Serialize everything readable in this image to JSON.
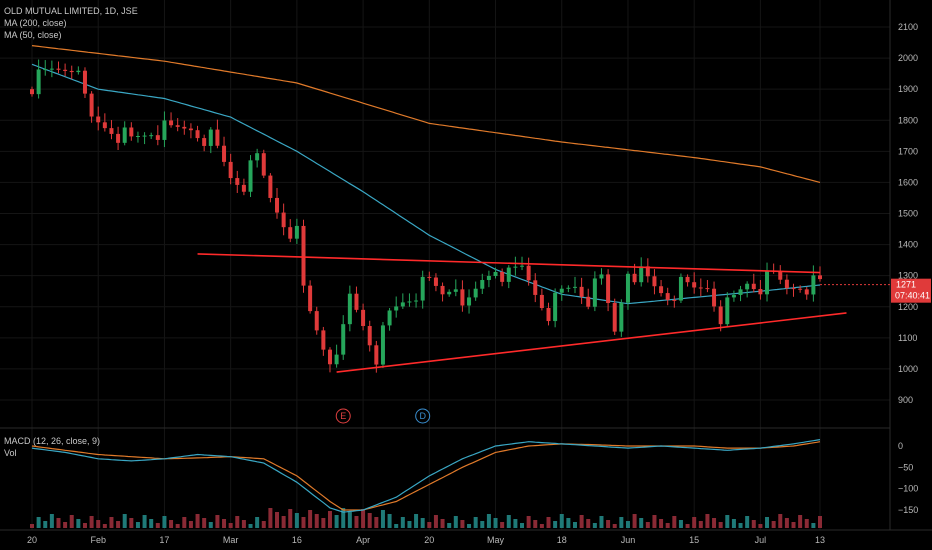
{
  "legend": {
    "title": "OLD MUTUAL LIMITED, 1D, JSE",
    "ma200": "MA (200, close)",
    "ma50": "MA (50, close)",
    "macd": "MACD (12, 26, close, 9)",
    "vol": "Vol"
  },
  "badges": {
    "last_price": "1271",
    "countdown": "07:40:41"
  },
  "events": [
    {
      "label": "E",
      "color": "#e04040",
      "day": 47
    },
    {
      "label": "D",
      "color": "#3a8fd0",
      "day": 59
    }
  ],
  "colors": {
    "up": "#26a65b",
    "down": "#e03a3a",
    "ma200": "#e07a2a",
    "ma50": "#3aa7c4",
    "trendline": "#ff2a2a",
    "macd_line": "#3aa7c4",
    "signal_line": "#e07a2a",
    "vol_up": "#1f7a78",
    "vol_down": "#8a2a35",
    "badge_bg": "#e03a3a",
    "grid": "#151515"
  },
  "chart_data": {
    "type": "candlestick",
    "title": "OLD MUTUAL LIMITED, 1D, JSE",
    "price_axis": {
      "ticks": [
        900,
        1000,
        1100,
        1200,
        1300,
        1400,
        1500,
        1600,
        1700,
        1800,
        1900,
        2000,
        2100
      ],
      "range": [
        850,
        2150
      ]
    },
    "macd_axis": {
      "ticks": [
        0,
        -50,
        -100,
        -150
      ],
      "range": [
        -180,
        30
      ]
    },
    "time_axis": {
      "labels": [
        "20",
        "Feb",
        "17",
        "Mar",
        "16",
        "Apr",
        "20",
        "May",
        "18",
        "Jun",
        "15",
        "Jul",
        "13"
      ],
      "days": [
        0,
        10,
        20,
        30,
        40,
        50,
        60,
        70,
        80,
        90,
        100,
        110,
        119
      ]
    },
    "candles_close_anchors": {
      "days": [
        0,
        3,
        6,
        9,
        12,
        15,
        18,
        21,
        24,
        27,
        30,
        32,
        34,
        36,
        38,
        40,
        41,
        42,
        44,
        46,
        48,
        50,
        52,
        54,
        56,
        58,
        60,
        62,
        64,
        66,
        68,
        70,
        72,
        74,
        76,
        78,
        80,
        82,
        84,
        86,
        88,
        90,
        92,
        94,
        96,
        98,
        100,
        102,
        104,
        106,
        108,
        110,
        112,
        114,
        116,
        118
      ],
      "closes": [
        1920,
        1960,
        1985,
        1800,
        1780,
        1730,
        1770,
        1760,
        1780,
        1740,
        1620,
        1600,
        1670,
        1550,
        1480,
        1430,
        1250,
        1180,
        1080,
        1010,
        1230,
        1150,
        1050,
        1170,
        1220,
        1250,
        1270,
        1240,
        1280,
        1200,
        1280,
        1330,
        1290,
        1320,
        1250,
        1190,
        1240,
        1270,
        1230,
        1280,
        1120,
        1330,
        1300,
        1260,
        1240,
        1260,
        1250,
        1270,
        1180,
        1220,
        1280,
        1270,
        1290,
        1260,
        1280,
        1271
      ]
    },
    "ma200_anchors": {
      "days": [
        0,
        20,
        40,
        60,
        80,
        100,
        110,
        119
      ],
      "values": [
        2040,
        1990,
        1920,
        1790,
        1730,
        1680,
        1650,
        1600
      ]
    },
    "ma50_anchors": {
      "days": [
        0,
        10,
        20,
        30,
        40,
        50,
        60,
        70,
        80,
        90,
        100,
        110,
        119
      ],
      "values": [
        1980,
        1900,
        1870,
        1810,
        1700,
        1570,
        1430,
        1320,
        1240,
        1210,
        1230,
        1250,
        1270
      ]
    },
    "trendlines": [
      {
        "name": "resistance",
        "from": {
          "day": 25,
          "value": 1370
        },
        "to": {
          "day": 119,
          "value": 1310
        }
      },
      {
        "name": "support",
        "from": {
          "day": 46,
          "value": 990
        },
        "to": {
          "day": 123,
          "value": 1180
        }
      }
    ],
    "macd_anchors": {
      "days": [
        0,
        5,
        10,
        15,
        20,
        25,
        30,
        35,
        40,
        45,
        47,
        50,
        55,
        60,
        65,
        70,
        75,
        80,
        85,
        90,
        95,
        100,
        105,
        110,
        115,
        119
      ],
      "macd": [
        -5,
        -15,
        -30,
        -35,
        -30,
        -20,
        -25,
        -40,
        -85,
        -145,
        -155,
        -150,
        -120,
        -70,
        -30,
        0,
        10,
        5,
        0,
        -5,
        0,
        -5,
        -10,
        -5,
        5,
        15
      ],
      "signal": [
        0,
        -10,
        -20,
        -25,
        -30,
        -28,
        -25,
        -30,
        -70,
        -130,
        -150,
        -150,
        -130,
        -90,
        -50,
        -15,
        0,
        5,
        3,
        0,
        0,
        0,
        -5,
        -5,
        0,
        10
      ]
    }
  }
}
